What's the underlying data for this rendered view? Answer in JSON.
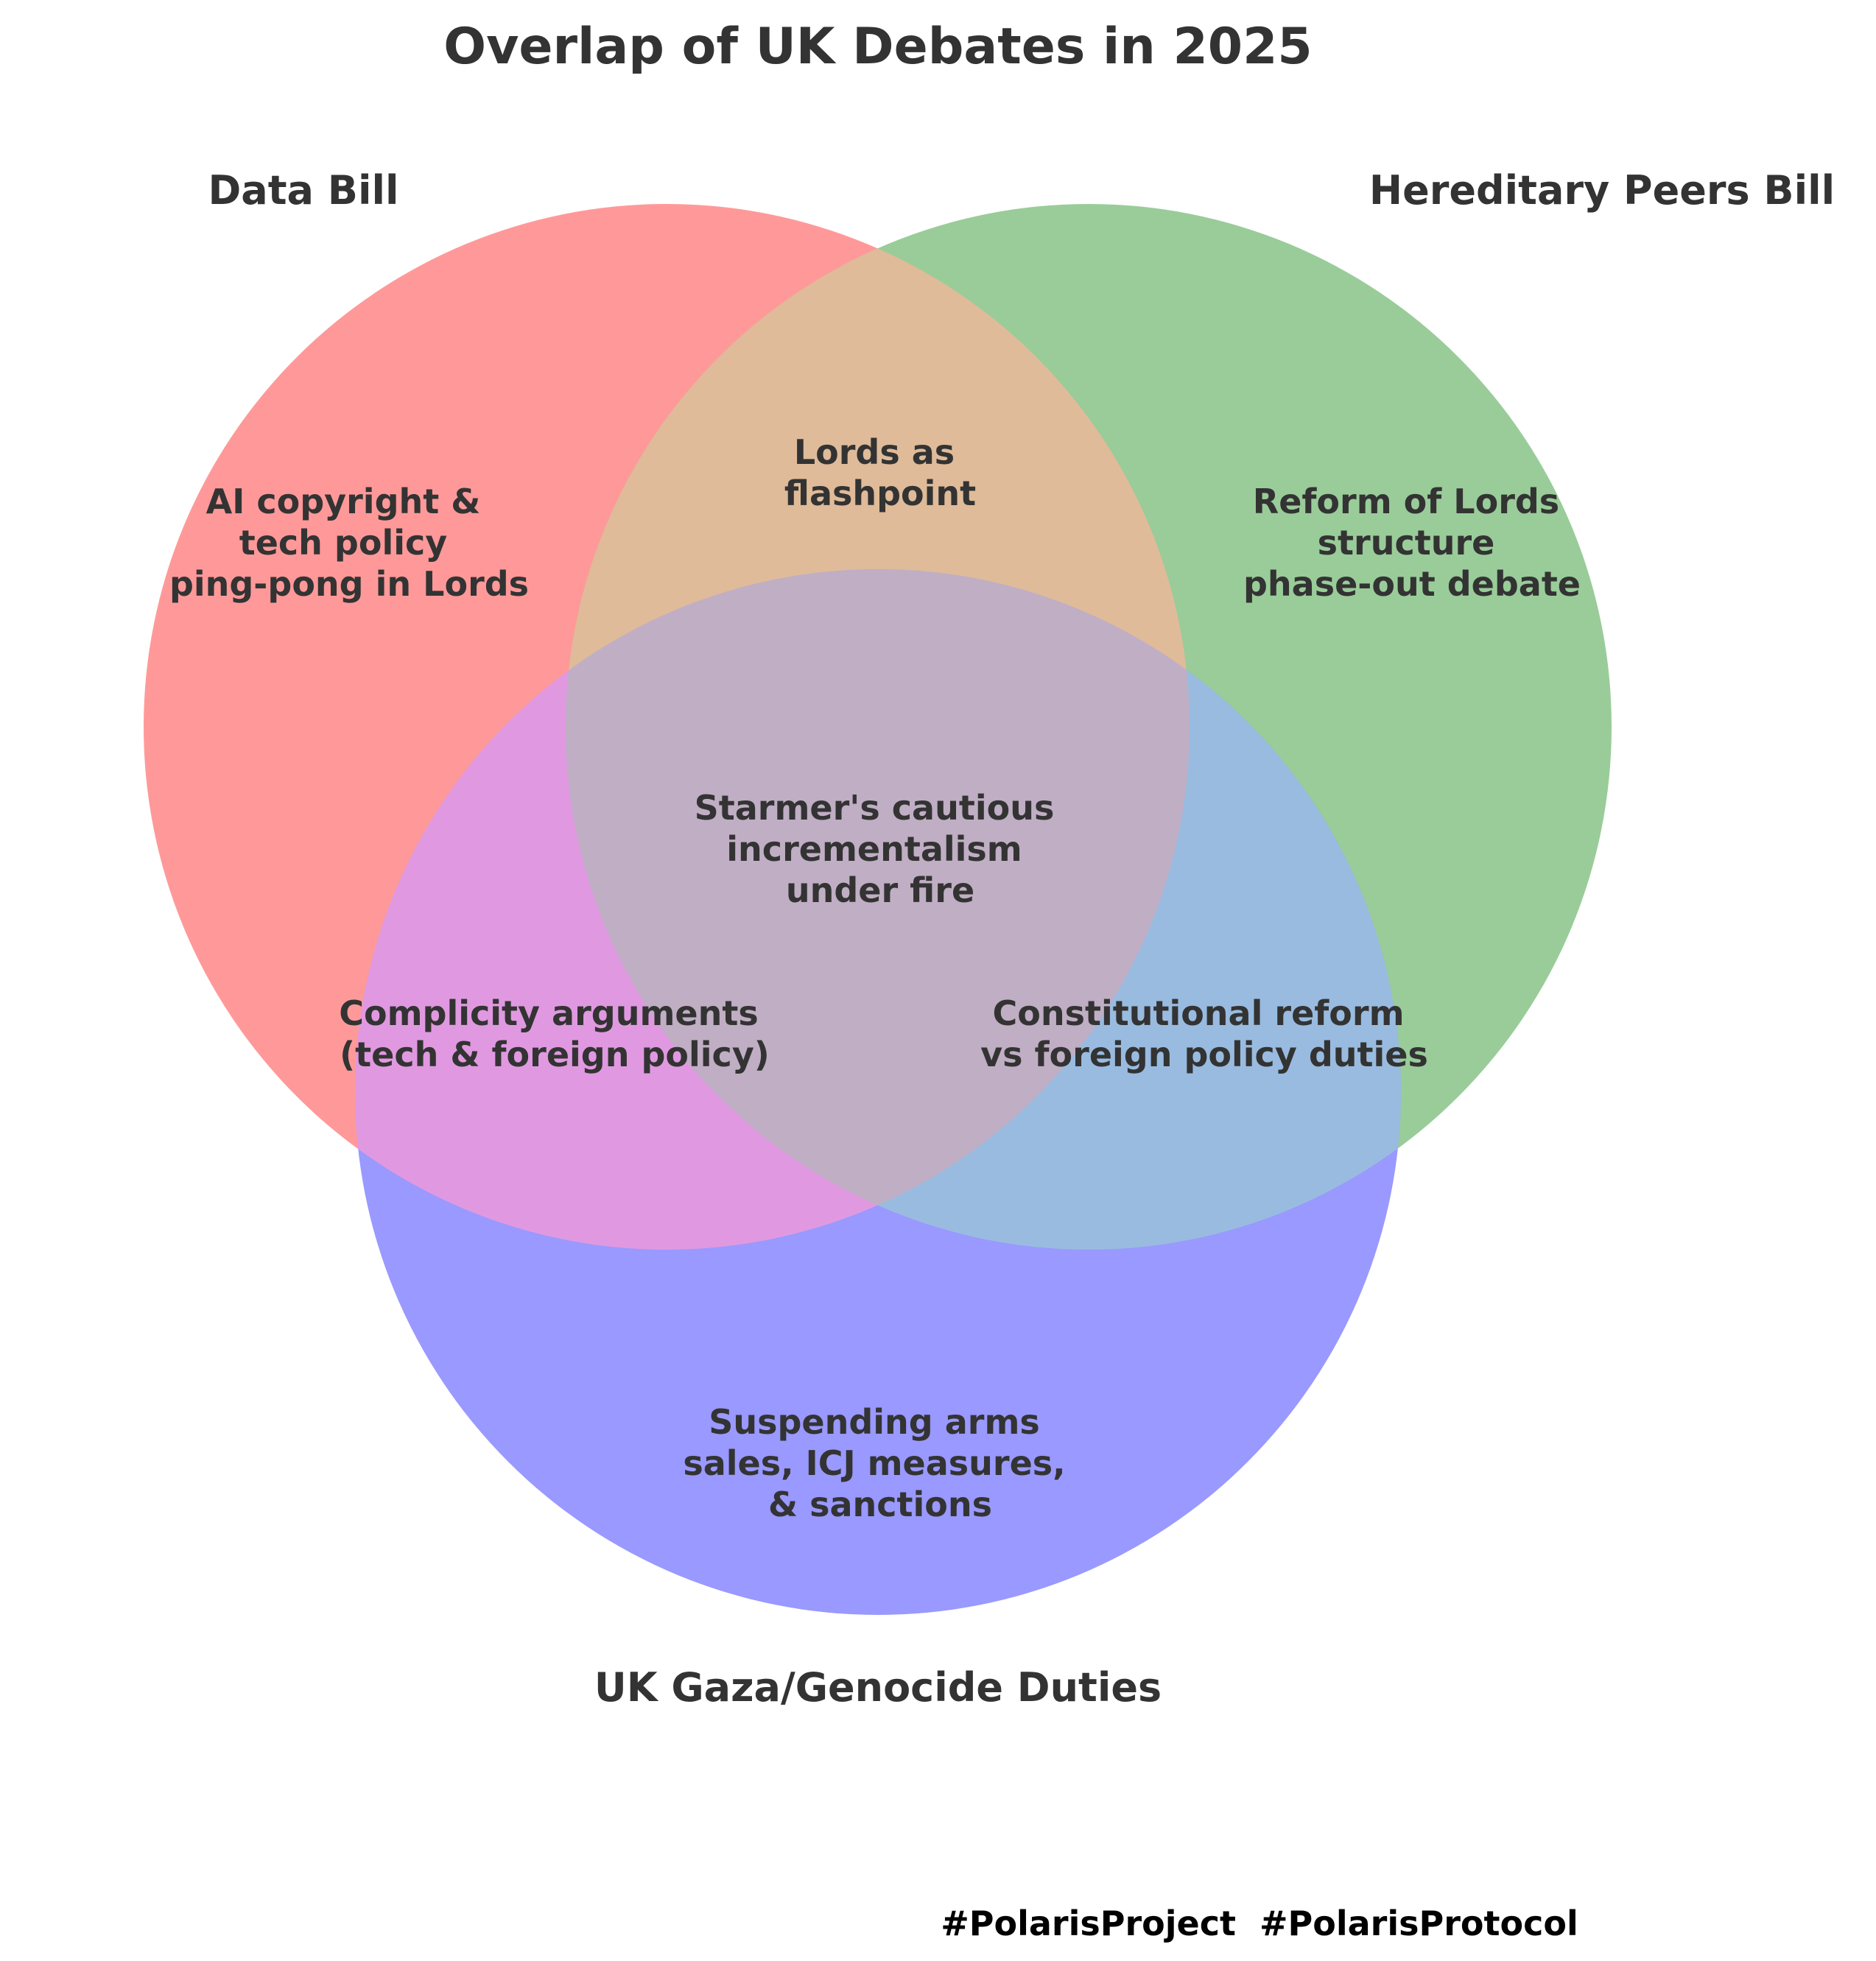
{
  "title": "Overlap of UK Debates in 2025",
  "sets": [
    {
      "label": "Data Bill",
      "color": "#ff9999"
    },
    {
      "label": "Hereditary Peers Bill",
      "color": "#99cc99"
    },
    {
      "label": "UK Gaza/Genocide Duties",
      "color": "#9999ff"
    }
  ],
  "regions": {
    "data_only": [
      "AI copyright &",
      "tech policy",
      "ping-pong in Lords"
    ],
    "peers_only": [
      "Reform of Lords",
      "structure",
      "phase-out debate"
    ],
    "gaza_only": [
      "Suspending arms",
      "sales, ICJ measures,",
      "& sanctions"
    ],
    "data_peers": [
      "Lords as",
      "flashpoint"
    ],
    "data_gaza": [
      "Complicity arguments",
      "(tech & foreign policy)"
    ],
    "peers_gaza": [
      "Constitutional reform",
      "vs foreign policy duties"
    ],
    "all_three": [
      "Starmer's cautious",
      "incrementalism",
      "under fire"
    ]
  },
  "footer": "#PolarisProject  #PolarisProtocol"
}
